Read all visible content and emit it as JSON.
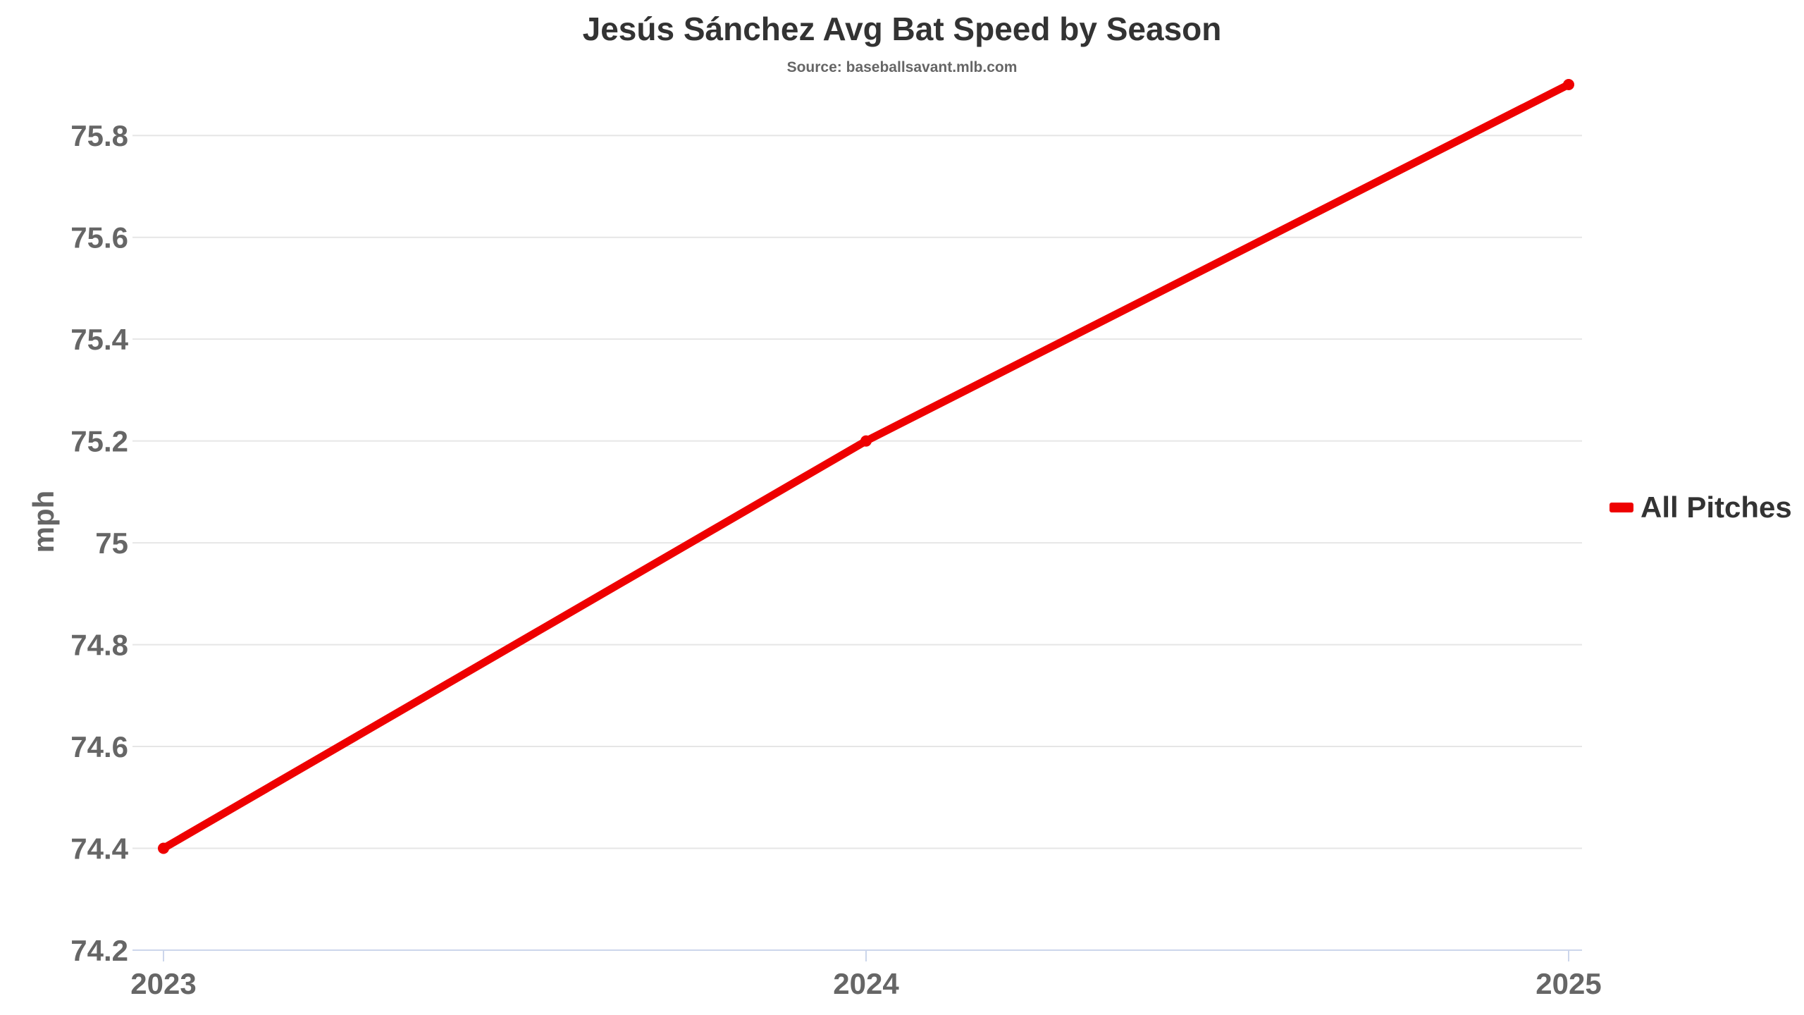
{
  "chart_data": {
    "type": "line",
    "title": "Jesús Sánchez Avg Bat Speed by Season",
    "subtitle": "Source: baseballsavant.mlb.com",
    "xlabel": "",
    "ylabel": "mph",
    "categories": [
      "2023",
      "2024",
      "2025"
    ],
    "series": [
      {
        "name": "All Pitches",
        "values": [
          74.4,
          75.2,
          75.9
        ],
        "color": "#ee0000"
      }
    ],
    "ylim": [
      74.2,
      75.9
    ],
    "yticks": [
      74.2,
      74.4,
      74.6,
      74.8,
      75,
      75.2,
      75.4,
      75.6,
      75.8
    ],
    "ytick_labels": [
      "74.2",
      "74.4",
      "74.6",
      "74.8",
      "75",
      "75.2",
      "75.4",
      "75.6",
      "75.8"
    ],
    "grid": true,
    "legend_position": "right"
  },
  "colors": {
    "grid": "#e6e6e6",
    "axis": "#ccd6eb",
    "text": "#666666",
    "title": "#333333"
  }
}
